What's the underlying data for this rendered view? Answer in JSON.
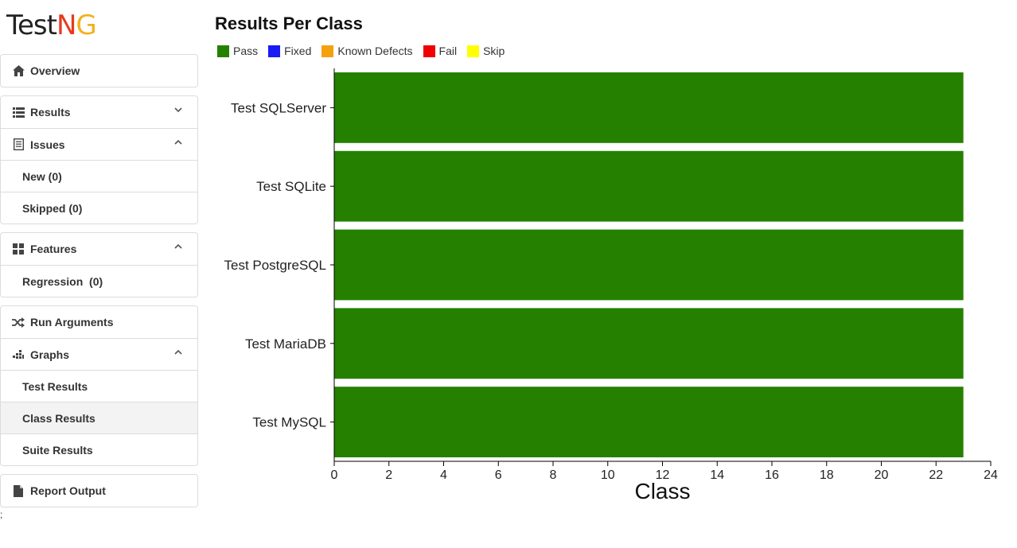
{
  "logo": {
    "part1": "Test",
    "part2": "N",
    "part3": "G"
  },
  "sidebar": {
    "groups": [
      {
        "items": [
          {
            "label": "Overview",
            "icon": "home-icon"
          }
        ]
      },
      {
        "items": [
          {
            "label": "Results",
            "icon": "list-icon",
            "chevron": "down"
          },
          {
            "label": "Issues",
            "icon": "document-icon",
            "chevron": "up"
          },
          {
            "label": "New (0)"
          },
          {
            "label": "Skipped (0)"
          }
        ]
      },
      {
        "items": [
          {
            "label": "Features",
            "icon": "grid-icon",
            "chevron": "up"
          },
          {
            "label": "Regression  (0)"
          }
        ]
      },
      {
        "items": [
          {
            "label": "Run Arguments",
            "icon": "shuffle-icon"
          },
          {
            "label": "Graphs",
            "icon": "chart-icon",
            "chevron": "up"
          },
          {
            "label": "Test Results"
          },
          {
            "label": "Class Results",
            "active": true
          },
          {
            "label": "Suite Results"
          }
        ]
      },
      {
        "items": [
          {
            "label": "Report Output",
            "icon": "file-icon"
          }
        ]
      }
    ],
    "footer_text": ";"
  },
  "main": {
    "title": "Results Per Class",
    "legend": [
      {
        "label": "Pass",
        "color": "#258000"
      },
      {
        "label": "Fixed",
        "color": "#1a1af5"
      },
      {
        "label": "Known Defects",
        "color": "#f5a10e"
      },
      {
        "label": "Fail",
        "color": "#f00000"
      },
      {
        "label": "Skip",
        "color": "#ffff00"
      }
    ]
  },
  "chart_data": {
    "type": "bar",
    "orientation": "horizontal",
    "stacked": true,
    "categories": [
      "Test SQLServer",
      "Test SQLite",
      "Test PostgreSQL",
      "Test MariaDB",
      "Test MySQL"
    ],
    "series": [
      {
        "name": "Pass",
        "values": [
          23,
          23,
          23,
          23,
          23
        ]
      },
      {
        "name": "Fixed",
        "values": [
          0,
          0,
          0,
          0,
          0
        ]
      },
      {
        "name": "Known Defects",
        "values": [
          0,
          0,
          0,
          0,
          0
        ]
      },
      {
        "name": "Fail",
        "values": [
          0,
          0,
          0,
          0,
          0
        ]
      },
      {
        "name": "Skip",
        "values": [
          0,
          0,
          0,
          0,
          0
        ]
      }
    ],
    "xlabel": "Class",
    "xlim": [
      0,
      24
    ],
    "xticks": [
      0,
      2,
      4,
      6,
      8,
      10,
      12,
      14,
      16,
      18,
      20,
      22,
      24
    ],
    "grid": false,
    "legend_position": "top"
  }
}
